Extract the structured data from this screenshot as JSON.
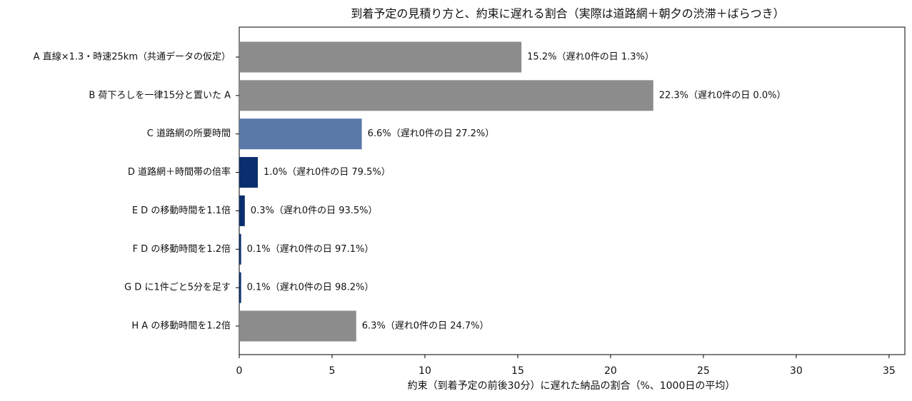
{
  "chart_data": {
    "type": "barh",
    "title": "到着予定の見積り方と、約束に遅れる割合（実際は道路網＋朝夕の渋滞＋ばらつき）",
    "xlabel": "約束（到着予定の前後30分）に遅れた納品の割合（%、1000日の平均）",
    "categories": [
      "A 直線×1.3・時速25km（共通データの仮定）",
      "B 荷下ろしを一律15分と置いた A",
      "C 道路網の所要時間",
      "D 道路網＋時間帯の倍率",
      "E D の移動時間を1.1倍",
      "F D の移動時間を1.2倍",
      "G D に1件ごと5分を足す",
      "H A の移動時間を1.2倍"
    ],
    "values": [
      15.2,
      22.3,
      6.6,
      1.0,
      0.3,
      0.1,
      0.1,
      6.3
    ],
    "value_labels": [
      "15.2%（遅れ0件の日 1.3%）",
      "22.3%（遅れ0件の日 0.0%）",
      "6.6%（遅れ0件の日 27.2%）",
      "1.0%（遅れ0件の日 79.5%）",
      "0.3%（遅れ0件の日 93.5%）",
      "0.1%（遅れ0件の日 97.1%）",
      "0.1%（遅れ0件の日 98.2%）",
      "6.3%（遅れ0件の日 24.7%）"
    ],
    "colors": [
      "#8c8c8c",
      "#8c8c8c",
      "#5b79a8",
      "#0b2f6e",
      "#0b2f6e",
      "#0b2f6e",
      "#0b2f6e",
      "#8c8c8c"
    ],
    "xlim": [
      0,
      35.85
    ],
    "xticks": [
      0,
      5,
      10,
      15,
      20,
      25,
      30,
      35
    ]
  }
}
